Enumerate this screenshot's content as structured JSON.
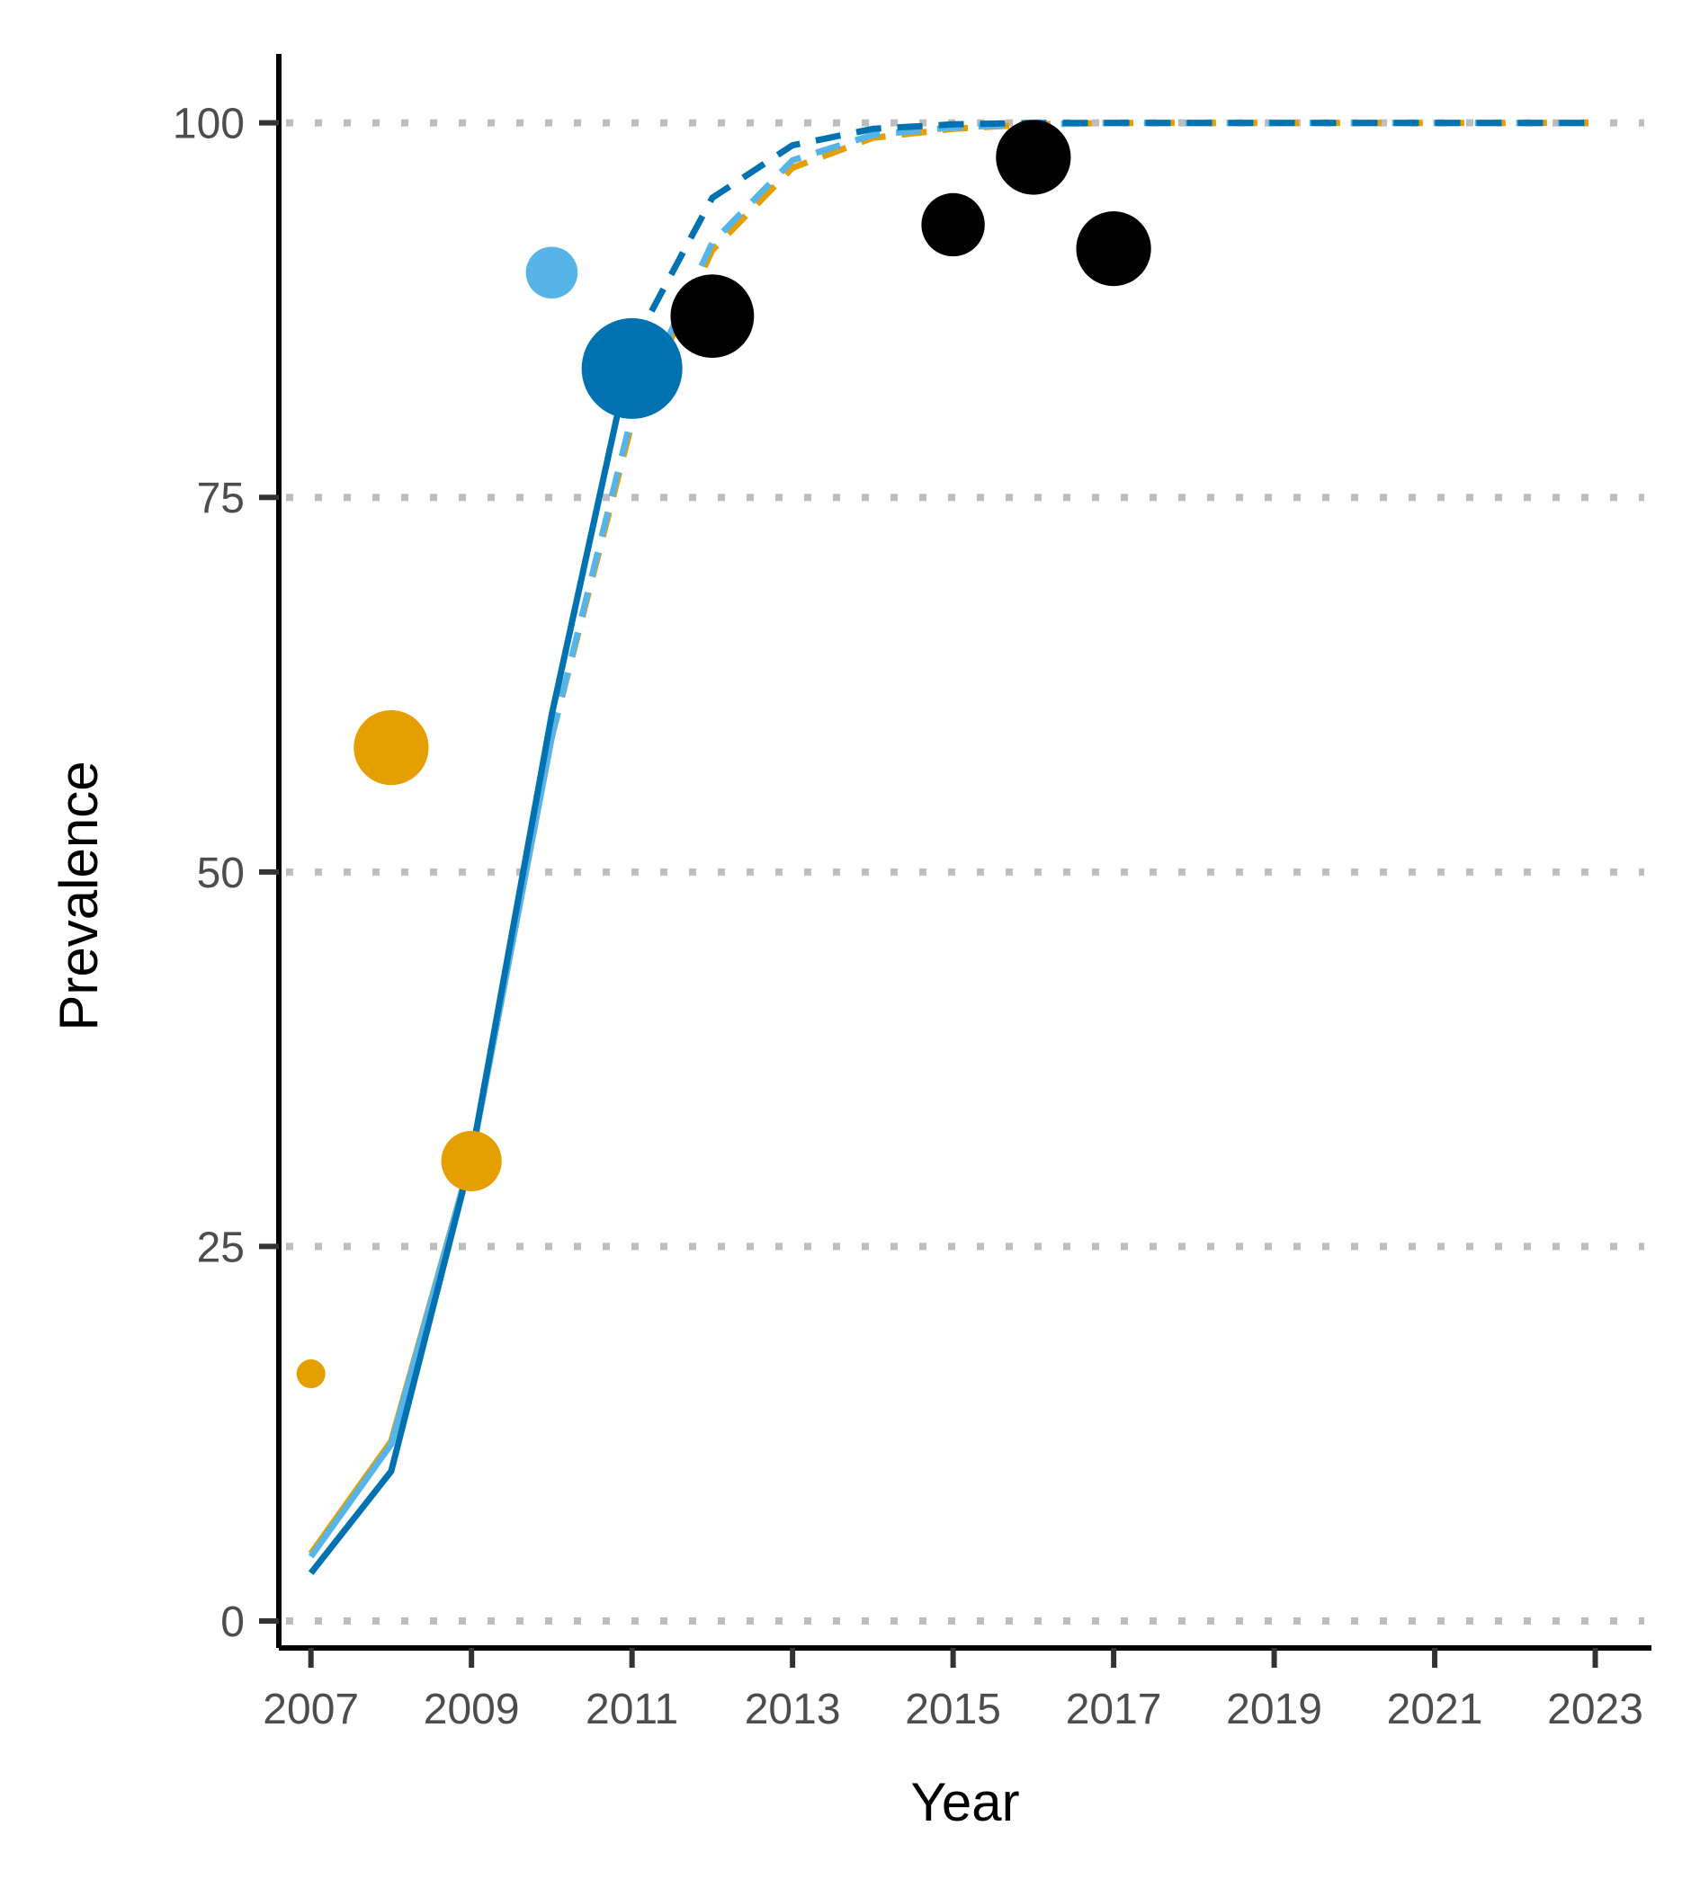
{
  "chart_data": {
    "type": "line",
    "xlabel": "Year",
    "ylabel": "Prevalence",
    "xlim": [
      2006.6,
      2023.7
    ],
    "ylim": [
      -1.8,
      104.6
    ],
    "x_ticks": [
      2007,
      2009,
      2011,
      2013,
      2015,
      2017,
      2019,
      2021,
      2023
    ],
    "y_ticks": [
      0,
      25,
      50,
      75,
      100
    ],
    "grid": "horizontal dotted",
    "legend": "none",
    "colors": {
      "orange": "#E69F00",
      "dark_blue": "#0072B2",
      "light_blue": "#56B4E9",
      "black": "#000000",
      "grid": "#bdbdbd",
      "axis": "#000000",
      "tick": "#333333"
    },
    "lines": [
      {
        "color": "orange",
        "style": "solid",
        "x": [
          2007,
          2008,
          2009,
          2010
        ],
        "y": [
          4.5,
          12.0,
          31.0,
          59.0
        ]
      },
      {
        "color": "orange",
        "style": "dashed",
        "x": [
          2010,
          2011,
          2012,
          2013,
          2014,
          2015,
          2016,
          2017,
          2018,
          2019,
          2020,
          2021,
          2022,
          2023
        ],
        "y": [
          59.0,
          80.0,
          91.5,
          97.0,
          99.0,
          99.6,
          99.9,
          100,
          100,
          100,
          100,
          100,
          100,
          100
        ]
      },
      {
        "color": "light_blue",
        "style": "solid",
        "x": [
          2007,
          2008,
          2009,
          2010
        ],
        "y": [
          4.3,
          11.8,
          31.0,
          59.0
        ]
      },
      {
        "color": "light_blue",
        "style": "dashed",
        "x": [
          2010,
          2011,
          2012,
          2013,
          2014,
          2015,
          2016,
          2017,
          2018,
          2019,
          2020,
          2021,
          2022,
          2023
        ],
        "y": [
          59.0,
          80.5,
          92.0,
          97.5,
          99.2,
          99.7,
          99.9,
          100,
          100,
          100,
          100,
          100,
          100,
          100
        ]
      },
      {
        "color": "dark_blue",
        "style": "solid",
        "x": [
          2007,
          2008,
          2009,
          2010,
          2011
        ],
        "y": [
          3.2,
          10.0,
          31.0,
          60.5,
          85.0
        ]
      },
      {
        "color": "dark_blue",
        "style": "dashed",
        "x": [
          2011,
          2012,
          2013,
          2014,
          2015,
          2016,
          2017,
          2018,
          2019,
          2020,
          2021,
          2022,
          2023
        ],
        "y": [
          85.0,
          95.0,
          98.5,
          99.6,
          99.9,
          100,
          100,
          100,
          100,
          100,
          100,
          100,
          100
        ]
      }
    ],
    "points": [
      {
        "x": 2007,
        "y": 16.5,
        "size": 1.0,
        "color": "orange"
      },
      {
        "x": 2008,
        "y": 58.3,
        "size": 2.6,
        "color": "orange"
      },
      {
        "x": 2009,
        "y": 30.7,
        "size": 2.1,
        "color": "orange"
      },
      {
        "x": 2010,
        "y": 90.0,
        "size": 1.8,
        "color": "light_blue"
      },
      {
        "x": 2011,
        "y": 83.6,
        "size": 3.5,
        "color": "dark_blue"
      },
      {
        "x": 2012,
        "y": 87.1,
        "size": 2.9,
        "color": "black"
      },
      {
        "x": 2015,
        "y": 93.2,
        "size": 2.2,
        "color": "black"
      },
      {
        "x": 2016,
        "y": 97.7,
        "size": 2.6,
        "color": "black"
      },
      {
        "x": 2017,
        "y": 91.6,
        "size": 2.6,
        "color": "black"
      }
    ]
  }
}
